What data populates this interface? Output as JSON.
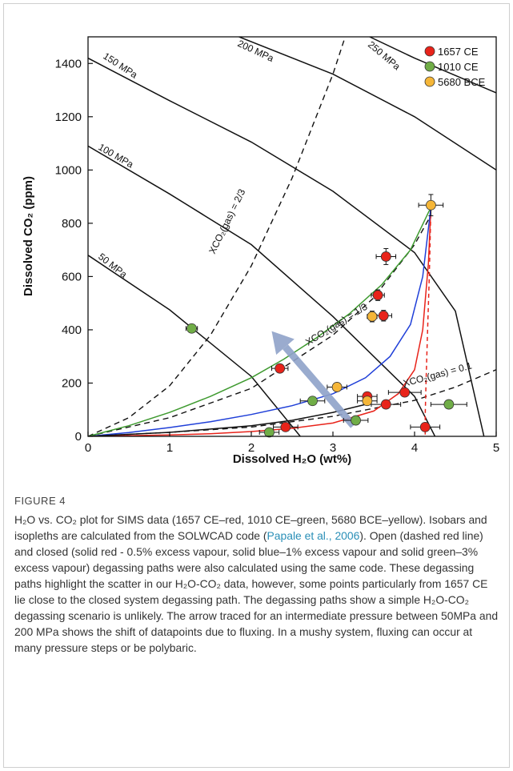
{
  "figure": {
    "label": "FIGURE 4",
    "caption_parts": [
      {
        "text": "H₂O vs. CO₂ plot for SIMS data (1657 CE–red, 1010 CE–green, 5680 BCE–yellow). Isobars and isopleths are calculated from the SOLWCAD code (",
        "cite": false
      },
      {
        "text": "Papale et al., 2006",
        "cite": true
      },
      {
        "text": "). Open (dashed red line) and closed (solid red - 0.5% excess vapour, solid blue–1% excess vapour and solid green–3% excess vapour) degassing paths were also calculated using the same code. These degassing paths highlight the scatter in our H₂O-CO₂ data, however, some points particularly from 1657 CE lie close to the closed system degassing path. The degassing paths show a simple H₂O-CO₂ degassing scenario is unlikely. The arrow traced for an intermediate pressure between 50MPa and 200 MPa shows the shift of datapoints due to fluxing. In a mushy system, fluxing can occur at many pressure steps or be polybaric.",
        "cite": false
      }
    ]
  },
  "chart_data": {
    "type": "scatter",
    "xlabel": "Dissolved H₂O (wt%)",
    "ylabel": "Dissolved CO₂ (ppm)",
    "xlim": [
      0,
      5
    ],
    "ylim": [
      0,
      1500
    ],
    "xticks": [
      0,
      1,
      2,
      3,
      4,
      5
    ],
    "yticks": [
      0,
      200,
      400,
      600,
      800,
      1000,
      1200,
      1400
    ],
    "grid": false,
    "legend_position": "top-right",
    "series": [
      {
        "name": "1657 CE",
        "color": "#e8231a",
        "points": [
          {
            "x": 3.65,
            "y": 675,
            "xerr": 0.12,
            "yerr": 30
          },
          {
            "x": 3.55,
            "y": 530,
            "xerr": 0.08,
            "yerr": 20
          },
          {
            "x": 3.62,
            "y": 453,
            "xerr": 0.1,
            "yerr": 20
          },
          {
            "x": 2.35,
            "y": 255,
            "xerr": 0.1,
            "yerr": 12
          },
          {
            "x": 3.42,
            "y": 150,
            "xerr": 0.12,
            "yerr": 10
          },
          {
            "x": 3.88,
            "y": 165,
            "xerr": 0.2,
            "yerr": 10
          },
          {
            "x": 3.65,
            "y": 120,
            "xerr": 0.18,
            "yerr": 10
          },
          {
            "x": 2.42,
            "y": 35,
            "xerr": 0.15,
            "yerr": 8
          },
          {
            "x": 4.13,
            "y": 35,
            "xerr": 0.18,
            "yerr": 8
          }
        ]
      },
      {
        "name": "1010 CE",
        "color": "#70ad47",
        "points": [
          {
            "x": 1.27,
            "y": 405,
            "xerr": 0.07,
            "yerr": 15
          },
          {
            "x": 2.75,
            "y": 133,
            "xerr": 0.15,
            "yerr": 8
          },
          {
            "x": 3.28,
            "y": 60,
            "xerr": 0.15,
            "yerr": 8
          },
          {
            "x": 2.22,
            "y": 15,
            "xerr": 0.12,
            "yerr": 6
          },
          {
            "x": 4.42,
            "y": 120,
            "xerr": 0.22,
            "yerr": 8
          }
        ]
      },
      {
        "name": "5680 BCE",
        "color": "#f5b638",
        "points": [
          {
            "x": 4.2,
            "y": 868,
            "xerr": 0.15,
            "yerr": 40
          },
          {
            "x": 3.48,
            "y": 450,
            "xerr": 0.06,
            "yerr": 20
          },
          {
            "x": 3.05,
            "y": 185,
            "xerr": 0.12,
            "yerr": 10
          },
          {
            "x": 3.42,
            "y": 133,
            "xerr": 0.12,
            "yerr": 10
          }
        ]
      }
    ],
    "isobars": [
      {
        "label": "50 MPa",
        "points": [
          [
            0,
            680
          ],
          [
            1,
            475
          ],
          [
            2,
            225
          ],
          [
            2.6,
            0
          ]
        ]
      },
      {
        "label": "100 MPa",
        "points": [
          [
            0,
            1090
          ],
          [
            1,
            910
          ],
          [
            2,
            720
          ],
          [
            3,
            450
          ],
          [
            4,
            150
          ],
          [
            4.25,
            0
          ]
        ]
      },
      {
        "label": "150 MPa",
        "points": [
          [
            0,
            1420
          ],
          [
            0.25,
            1380
          ],
          [
            1,
            1260
          ],
          [
            2,
            1105
          ],
          [
            3,
            920
          ],
          [
            4,
            690
          ],
          [
            4.5,
            470
          ],
          [
            4.85,
            0
          ]
        ]
      },
      {
        "label": "200 MPa",
        "points": [
          [
            1.85,
            1500
          ],
          [
            3,
            1360
          ],
          [
            4,
            1200
          ],
          [
            5,
            1000
          ]
        ]
      },
      {
        "label": "250 MPa",
        "points": [
          [
            3.45,
            1500
          ],
          [
            4,
            1420
          ],
          [
            5,
            1290
          ]
        ]
      }
    ],
    "isopleths": [
      {
        "label": "XCO₂(gas) = 2/3",
        "points": [
          [
            0,
            0
          ],
          [
            0.5,
            70
          ],
          [
            1,
            190
          ],
          [
            1.5,
            380
          ],
          [
            2,
            640
          ],
          [
            2.5,
            970
          ],
          [
            3,
            1360
          ],
          [
            3.15,
            1500
          ]
        ]
      },
      {
        "label": "XCO₂(gas) = 1/3",
        "points": [
          [
            0,
            0
          ],
          [
            1,
            70
          ],
          [
            2,
            180
          ],
          [
            3,
            380
          ],
          [
            3.5,
            520
          ],
          [
            4,
            720
          ],
          [
            4.2,
            830
          ]
        ]
      },
      {
        "label": "XCO₂(gas) = 0.1",
        "points": [
          [
            0,
            0
          ],
          [
            1,
            15
          ],
          [
            2,
            35
          ],
          [
            3,
            75
          ],
          [
            4,
            135
          ],
          [
            4.5,
            185
          ],
          [
            5,
            250
          ]
        ]
      }
    ],
    "degassing_paths": [
      {
        "style": "open",
        "color": "#e8231a",
        "dashed": true,
        "points": [
          [
            4.2,
            860
          ],
          [
            4.18,
            600
          ],
          [
            4.16,
            400
          ],
          [
            4.14,
            200
          ],
          [
            4.13,
            80
          ],
          [
            4.13,
            0
          ]
        ]
      },
      {
        "style": "closed 0.5% excess vapour",
        "color": "#e8231a",
        "dashed": false,
        "points": [
          [
            4.2,
            860
          ],
          [
            4.17,
            650
          ],
          [
            4.1,
            400
          ],
          [
            4.0,
            250
          ],
          [
            3.8,
            160
          ],
          [
            3.5,
            95
          ],
          [
            3.0,
            50
          ],
          [
            2.5,
            30
          ],
          [
            2.0,
            18
          ],
          [
            1.5,
            10
          ],
          [
            1.0,
            5
          ],
          [
            0,
            0
          ]
        ]
      },
      {
        "style": "closed 1% excess vapour",
        "color": "#1f3fd8",
        "dashed": false,
        "points": [
          [
            4.2,
            860
          ],
          [
            4.1,
            600
          ],
          [
            3.95,
            420
          ],
          [
            3.7,
            300
          ],
          [
            3.4,
            220
          ],
          [
            3.0,
            160
          ],
          [
            2.5,
            115
          ],
          [
            2.0,
            82
          ],
          [
            1.5,
            55
          ],
          [
            1.0,
            33
          ],
          [
            0.5,
            14
          ],
          [
            0,
            0
          ]
        ]
      },
      {
        "style": "closed 3% excess vapour",
        "color": "#3e9a2f",
        "dashed": false,
        "points": [
          [
            4.2,
            860
          ],
          [
            3.95,
            700
          ],
          [
            3.6,
            570
          ],
          [
            3.2,
            460
          ],
          [
            2.8,
            370
          ],
          [
            2.4,
            290
          ],
          [
            2.0,
            220
          ],
          [
            1.5,
            150
          ],
          [
            1.0,
            90
          ],
          [
            0.5,
            40
          ],
          [
            0,
            0
          ]
        ]
      },
      {
        "style": "pure H₂O",
        "color": "#111111",
        "dashed": false,
        "points": [
          [
            0,
            0
          ],
          [
            1,
            15
          ],
          [
            2,
            40
          ],
          [
            2.5,
            60
          ],
          [
            3,
            90
          ],
          [
            3.4,
            120
          ]
        ]
      }
    ],
    "arrow": {
      "from": [
        3.25,
        40
      ],
      "to": [
        2.25,
        395
      ],
      "color": "#8fa2c9"
    }
  }
}
